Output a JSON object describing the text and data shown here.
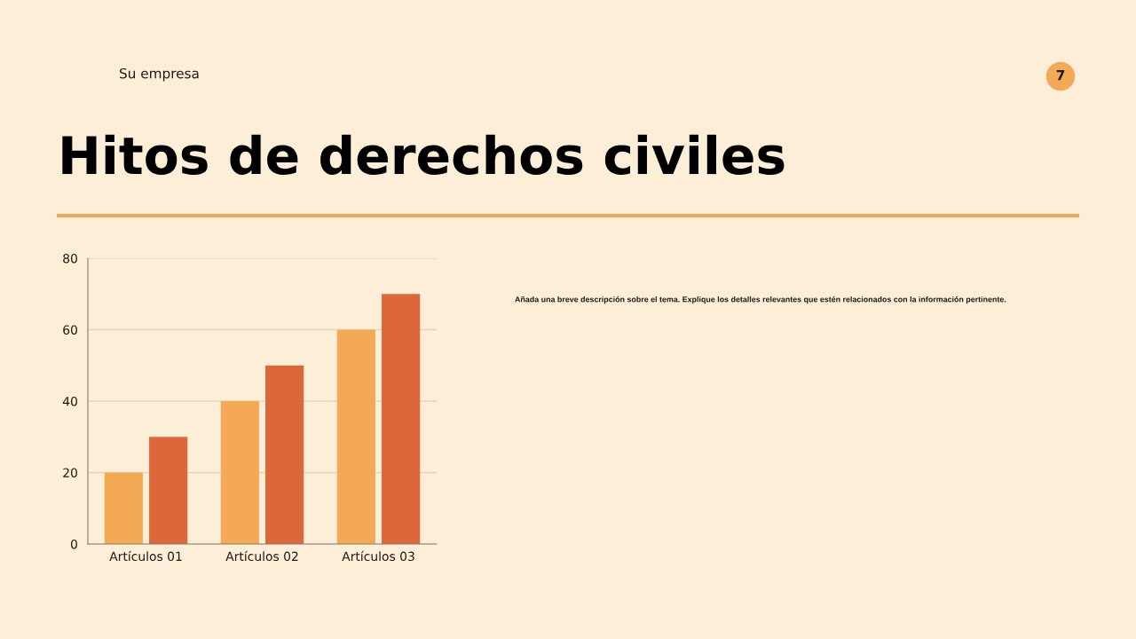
{
  "chart_data": {
    "type": "bar",
    "title": "Hitos de derechos civiles",
    "categories": [
      "Artículos 01",
      "Artículos 02",
      "Artículos 03"
    ],
    "series": [
      {
        "color": "#f4a957",
        "values": [
          20,
          40,
          60
        ]
      },
      {
        "color": "#dc673a",
        "values": [
          30,
          50,
          70
        ]
      }
    ],
    "ylim": [
      0,
      80
    ],
    "yticks": [
      0,
      20,
      40,
      60,
      80
    ],
    "grid": "y",
    "annotations": [
      "Su empresa",
      "7",
      "Añada una breve descripción sobre el tema. Explique los detalles relevantes que estén relacionados con la información pertinente."
    ]
  }
}
